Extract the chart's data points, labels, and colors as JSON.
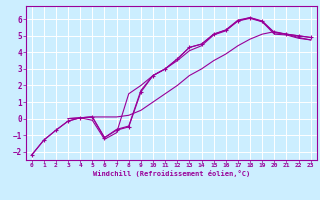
{
  "xlabel": "Windchill (Refroidissement éolien,°C)",
  "background_color": "#cceeff",
  "grid_color": "#ffffff",
  "line_color": "#990099",
  "xlim": [
    -0.5,
    23.5
  ],
  "ylim": [
    -2.5,
    6.8
  ],
  "xticks": [
    0,
    1,
    2,
    3,
    4,
    5,
    6,
    7,
    8,
    9,
    10,
    11,
    12,
    13,
    14,
    15,
    16,
    17,
    18,
    19,
    20,
    21,
    22,
    23
  ],
  "yticks": [
    -2,
    -1,
    0,
    1,
    2,
    3,
    4,
    5,
    6
  ],
  "line1_x": [
    0,
    1,
    2,
    3,
    4,
    5,
    6,
    7,
    8,
    9,
    10,
    11,
    12,
    13,
    14,
    15,
    16,
    17,
    18,
    19,
    20,
    21,
    22,
    23
  ],
  "line1_y": [
    -2.2,
    -1.3,
    -0.7,
    -0.15,
    0.05,
    0.1,
    -1.15,
    -0.7,
    -0.5,
    1.6,
    2.6,
    3.0,
    3.6,
    4.3,
    4.5,
    5.1,
    5.35,
    5.9,
    6.1,
    5.9,
    5.2,
    5.1,
    5.0,
    4.9
  ],
  "line2_x": [
    0,
    1,
    2,
    3,
    4,
    5,
    6,
    7,
    8,
    9,
    10,
    11,
    12,
    13,
    14,
    15,
    16,
    17,
    18,
    19,
    20,
    21,
    22,
    23
  ],
  "line2_y": [
    -2.2,
    -1.3,
    -0.7,
    -0.15,
    0.05,
    -0.1,
    -1.25,
    -0.85,
    1.5,
    2.0,
    2.6,
    3.0,
    3.5,
    4.1,
    4.4,
    5.05,
    5.3,
    5.9,
    6.05,
    5.85,
    5.1,
    5.05,
    4.85,
    4.75
  ],
  "line3_x": [
    3,
    4,
    5,
    6,
    7,
    8,
    9,
    10,
    11,
    12,
    13,
    14,
    15,
    16,
    17,
    18,
    19,
    20,
    21,
    22,
    23
  ],
  "line3_y": [
    0.0,
    0.05,
    0.1,
    0.1,
    0.1,
    0.2,
    0.5,
    1.0,
    1.5,
    2.0,
    2.6,
    3.0,
    3.5,
    3.9,
    4.4,
    4.8,
    5.1,
    5.25,
    5.1,
    4.9,
    4.75
  ],
  "line4_x": [
    3,
    4,
    5,
    6,
    7,
    8,
    9,
    10,
    11,
    12,
    13,
    14,
    15,
    16,
    17,
    18,
    19,
    20,
    21,
    22,
    23
  ],
  "line4_y": [
    0.0,
    0.05,
    0.1,
    -1.15,
    -0.65,
    -0.45,
    1.7,
    2.6,
    3.0,
    3.6,
    4.3,
    4.5,
    5.1,
    5.35,
    5.95,
    6.1,
    5.85,
    5.2,
    5.1,
    5.0,
    4.9
  ]
}
